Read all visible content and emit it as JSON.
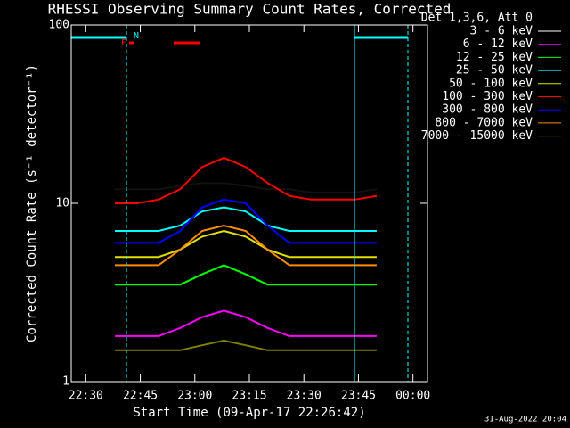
{
  "chart_data": {
    "type": "line",
    "title": "RHESSI Observing Summary Count Rates, Corrected",
    "x_label": "Start Time (09-Apr-17 22:26:42)",
    "y_label": "Corrected Count Rate (s⁻¹ detector⁻¹)",
    "legend_title": "Det 1,3,6, Att 0",
    "footer": "31-Aug-2022 20:04",
    "annotations": [
      "F",
      "N"
    ],
    "log_y": true,
    "xlim": [
      "22:26",
      "00:04"
    ],
    "xticks": [
      "22:30",
      "22:45",
      "23:00",
      "23:15",
      "23:30",
      "23:45",
      "00:00"
    ],
    "ylim": [
      1,
      100
    ],
    "yticks": [
      1,
      10,
      100
    ],
    "x": [
      "22:38",
      "22:44",
      "22:50",
      "22:56",
      "23:02",
      "23:08",
      "23:14",
      "23:20",
      "23:26",
      "23:32",
      "23:38",
      "23:44",
      "23:50"
    ],
    "series": [
      {
        "name": "3 - 6 keV",
        "color": "#000000",
        "values": [
          12,
          12,
          12,
          12.5,
          13,
          13,
          12.5,
          12,
          12,
          11.5,
          11.5,
          11.5,
          12
        ]
      },
      {
        "name": "6 - 12 keV",
        "color": "#ff00ff",
        "values": [
          1.8,
          1.8,
          1.8,
          2,
          2.3,
          2.5,
          2.3,
          2,
          1.8,
          1.8,
          1.8,
          1.8,
          1.8
        ]
      },
      {
        "name": "12 - 25 keV",
        "color": "#00ff00",
        "values": [
          3.5,
          3.5,
          3.5,
          3.5,
          4,
          4.5,
          4,
          3.5,
          3.5,
          3.5,
          3.5,
          3.5,
          3.5
        ]
      },
      {
        "name": "25 - 50 keV",
        "color": "#00ffff",
        "values": [
          7,
          7,
          7,
          7.5,
          9,
          9.5,
          9,
          7.5,
          7,
          7,
          7,
          7,
          7
        ]
      },
      {
        "name": "50 - 100 keV",
        "color": "#e0e000",
        "values": [
          5,
          5,
          5,
          5.5,
          6.5,
          7,
          6.5,
          5.5,
          5,
          5,
          5,
          5,
          5
        ]
      },
      {
        "name": "100 - 300 keV",
        "color": "#ff0000",
        "values": [
          10,
          10,
          10.5,
          12,
          16,
          18,
          16,
          13,
          11,
          10.5,
          10.5,
          10.5,
          11
        ]
      },
      {
        "name": "300 - 800 keV",
        "color": "#0000ff",
        "values": [
          6,
          6,
          6,
          7,
          9.5,
          10.5,
          10,
          7.5,
          6,
          6,
          6,
          6,
          6
        ]
      },
      {
        "name": "800 - 7000 keV",
        "color": "#ff8c00",
        "values": [
          4.5,
          4.5,
          4.5,
          5.5,
          7,
          7.5,
          7,
          5.5,
          4.5,
          4.5,
          4.5,
          4.5,
          4.5
        ]
      },
      {
        "name": "7000 - 15000 keV",
        "color": "#808000",
        "values": [
          1.5,
          1.5,
          1.5,
          1.5,
          1.6,
          1.7,
          1.6,
          1.5,
          1.5,
          1.5,
          1.5,
          1.5,
          1.5
        ]
      }
    ]
  }
}
